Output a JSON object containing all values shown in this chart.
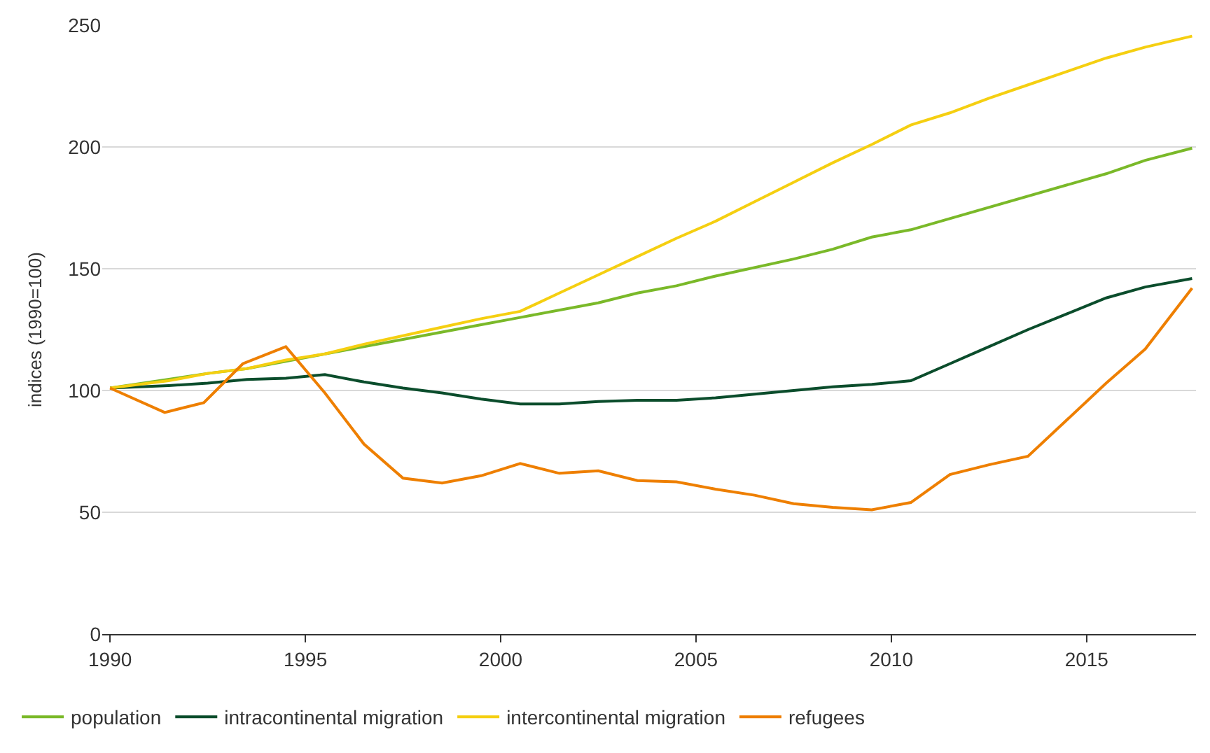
{
  "chart_data": {
    "type": "line",
    "ylabel": "indices (1990=100)",
    "xlim": [
      1989.8,
      2017.8
    ],
    "ylim": [
      0,
      250
    ],
    "xticks": [
      1990,
      1995,
      2000,
      2005,
      2010,
      2015
    ],
    "yticks": [
      0,
      50,
      100,
      150,
      200,
      250
    ],
    "grid": "y",
    "legend": "bottom left",
    "marker": "none",
    "line_style": "solid",
    "series": [
      {
        "name": "population",
        "color": "#7ab929",
        "x": [
          1990,
          1992.5,
          1993.5,
          1994.5,
          1995.5,
          1997.5,
          1998.5,
          1999.5,
          2000.5,
          2002.5,
          2003.5,
          2004.5,
          2005.5,
          2007.5,
          2008.5,
          2009.5,
          2010.5,
          2015.5,
          2016.5,
          2017.7
        ],
        "values": [
          101,
          107,
          109,
          112,
          115,
          121,
          124,
          127,
          130,
          136,
          140,
          143,
          147,
          154,
          158,
          163,
          166,
          189,
          194.5,
          199.5
        ]
      },
      {
        "name": "intracontinental migration",
        "color": "#0b4d2c",
        "x": [
          1990,
          1991.5,
          1992.5,
          1993.5,
          1994.5,
          1995.5,
          1996.5,
          1997.5,
          1998.5,
          1999.5,
          2000.5,
          2001.5,
          2002.5,
          2003.5,
          2004.5,
          2005.5,
          2006.5,
          2007.5,
          2008.5,
          2009.5,
          2010.5,
          2011.5,
          2012.5,
          2013.5,
          2014.5,
          2015.5,
          2016.5,
          2017.7
        ],
        "values": [
          101,
          102,
          103,
          104.5,
          105,
          106.5,
          103.5,
          101,
          99,
          96.5,
          94.5,
          94.5,
          95.5,
          96,
          96,
          97,
          98.5,
          100,
          101.5,
          102.5,
          104,
          111,
          118,
          125,
          131.5,
          138,
          142.5,
          146
        ]
      },
      {
        "name": "intercontinental migration",
        "color": "#f5cf11",
        "x": [
          1990,
          1991.5,
          1992.5,
          1993.5,
          1994.5,
          1995.5,
          1996.5,
          1997.5,
          1998.5,
          1999.5,
          2000.5,
          2001.5,
          2002.5,
          2003.5,
          2004.5,
          2005.5,
          2006.5,
          2007.5,
          2008.5,
          2009.5,
          2010.5,
          2011.5,
          2012.5,
          2013.5,
          2014.5,
          2015.5,
          2016.5,
          2017.7
        ],
        "values": [
          101,
          104,
          107,
          109,
          112.5,
          115,
          119,
          122.5,
          126,
          129.5,
          132.5,
          140,
          147.5,
          155,
          162.5,
          169.5,
          177.5,
          185.5,
          193.5,
          201,
          209,
          214,
          220,
          225.5,
          231,
          236.5,
          241,
          245.5
        ]
      },
      {
        "name": "refugees",
        "color": "#ee7f00",
        "x": [
          1990,
          1991.4,
          1992.4,
          1993.4,
          1994.5,
          1995.5,
          1996.5,
          1997.5,
          1998.5,
          1999.5,
          2000.5,
          2001.5,
          2002.5,
          2003.5,
          2004.5,
          2005.5,
          2006.5,
          2007.5,
          2008.5,
          2009.5,
          2010.5,
          2011.5,
          2012.5,
          2013.5,
          2014.5,
          2015.5,
          2016.5,
          2017.7
        ],
        "values": [
          101,
          91,
          95,
          111,
          118,
          99,
          78,
          64,
          62,
          65,
          70,
          66,
          67,
          63,
          62.5,
          59.5,
          57,
          53.5,
          52,
          51,
          54,
          65.5,
          69.5,
          73,
          88,
          103,
          117,
          142
        ]
      }
    ]
  }
}
